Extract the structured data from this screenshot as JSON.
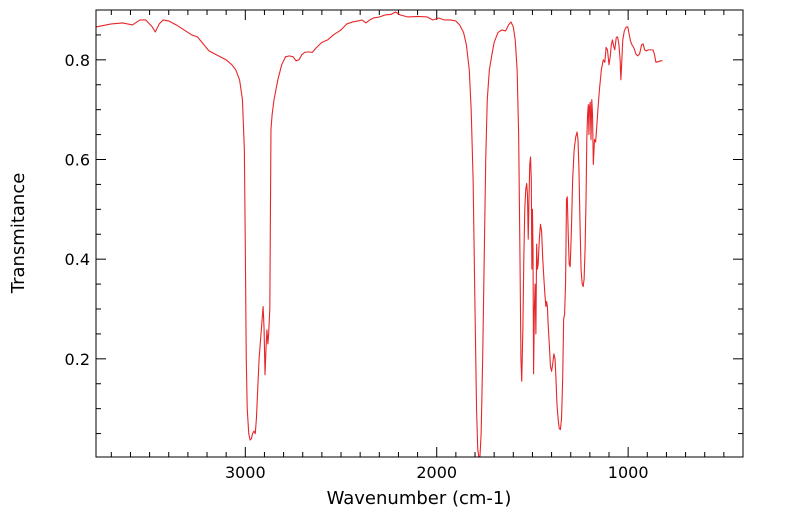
{
  "chart_data": {
    "type": "line",
    "xlabel": "Wavenumber (cm-1)",
    "ylabel": "Transmitance",
    "xlim": [
      3780,
      400
    ],
    "ylim": [
      0.003,
      0.9
    ],
    "x_reversed": true,
    "x_ticks": [
      3000,
      2000,
      1000
    ],
    "x_tick_labels": [
      "3000",
      "2000",
      "1000"
    ],
    "y_ticks": [
      0.2,
      0.4,
      0.6,
      0.8
    ],
    "y_tick_labels": [
      "0.2",
      "0.4",
      "0.6",
      "0.8"
    ],
    "grid": false,
    "series": [
      {
        "color": "#e8262a",
        "points": [
          [
            3780,
            0.866
          ],
          [
            3700,
            0.872
          ],
          [
            3640,
            0.874
          ],
          [
            3590,
            0.87
          ],
          [
            3550,
            0.88
          ],
          [
            3520,
            0.88
          ],
          [
            3490,
            0.868
          ],
          [
            3470,
            0.856
          ],
          [
            3450,
            0.872
          ],
          [
            3430,
            0.88
          ],
          [
            3400,
            0.878
          ],
          [
            3360,
            0.87
          ],
          [
            3320,
            0.86
          ],
          [
            3280,
            0.85
          ],
          [
            3250,
            0.846
          ],
          [
            3220,
            0.832
          ],
          [
            3190,
            0.818
          ],
          [
            3160,
            0.812
          ],
          [
            3130,
            0.806
          ],
          [
            3100,
            0.8
          ],
          [
            3070,
            0.79
          ],
          [
            3050,
            0.78
          ],
          [
            3030,
            0.76
          ],
          [
            3015,
            0.72
          ],
          [
            3005,
            0.62
          ],
          [
            3000,
            0.42
          ],
          [
            2995,
            0.2
          ],
          [
            2990,
            0.1
          ],
          [
            2982,
            0.05
          ],
          [
            2975,
            0.037
          ],
          [
            2968,
            0.04
          ],
          [
            2962,
            0.05
          ],
          [
            2955,
            0.055
          ],
          [
            2948,
            0.05
          ],
          [
            2942,
            0.08
          ],
          [
            2935,
            0.14
          ],
          [
            2928,
            0.2
          ],
          [
            2920,
            0.24
          ],
          [
            2912,
            0.28
          ],
          [
            2907,
            0.305
          ],
          [
            2902,
            0.26
          ],
          [
            2897,
            0.168
          ],
          [
            2892,
            0.22
          ],
          [
            2887,
            0.258
          ],
          [
            2882,
            0.23
          ],
          [
            2878,
            0.25
          ],
          [
            2872,
            0.3
          ],
          [
            2866,
            0.66
          ],
          [
            2860,
            0.69
          ],
          [
            2850,
            0.72
          ],
          [
            2830,
            0.76
          ],
          [
            2810,
            0.79
          ],
          [
            2790,
            0.806
          ],
          [
            2770,
            0.808
          ],
          [
            2750,
            0.806
          ],
          [
            2735,
            0.798
          ],
          [
            2720,
            0.8
          ],
          [
            2705,
            0.81
          ],
          [
            2690,
            0.815
          ],
          [
            2670,
            0.816
          ],
          [
            2650,
            0.815
          ],
          [
            2630,
            0.824
          ],
          [
            2600,
            0.835
          ],
          [
            2570,
            0.84
          ],
          [
            2540,
            0.85
          ],
          [
            2500,
            0.86
          ],
          [
            2470,
            0.872
          ],
          [
            2440,
            0.876
          ],
          [
            2410,
            0.878
          ],
          [
            2390,
            0.88
          ],
          [
            2370,
            0.874
          ],
          [
            2350,
            0.88
          ],
          [
            2330,
            0.884
          ],
          [
            2300,
            0.886
          ],
          [
            2270,
            0.89
          ],
          [
            2240,
            0.891
          ],
          [
            2215,
            0.896
          ],
          [
            2190,
            0.89
          ],
          [
            2150,
            0.886
          ],
          [
            2100,
            0.887
          ],
          [
            2050,
            0.886
          ],
          [
            2020,
            0.88
          ],
          [
            1990,
            0.884
          ],
          [
            1960,
            0.88
          ],
          [
            1930,
            0.88
          ],
          [
            1900,
            0.878
          ],
          [
            1880,
            0.87
          ],
          [
            1860,
            0.855
          ],
          [
            1845,
            0.83
          ],
          [
            1830,
            0.78
          ],
          [
            1820,
            0.7
          ],
          [
            1810,
            0.56
          ],
          [
            1800,
            0.3
          ],
          [
            1792,
            0.1
          ],
          [
            1786,
            0.02
          ],
          [
            1780,
            0.003
          ],
          [
            1774,
            0.005
          ],
          [
            1768,
            0.05
          ],
          [
            1760,
            0.2
          ],
          [
            1752,
            0.4
          ],
          [
            1744,
            0.6
          ],
          [
            1736,
            0.72
          ],
          [
            1725,
            0.78
          ],
          [
            1712,
            0.81
          ],
          [
            1700,
            0.835
          ],
          [
            1680,
            0.855
          ],
          [
            1660,
            0.86
          ],
          [
            1640,
            0.858
          ],
          [
            1625,
            0.87
          ],
          [
            1612,
            0.876
          ],
          [
            1600,
            0.866
          ],
          [
            1590,
            0.84
          ],
          [
            1580,
            0.78
          ],
          [
            1572,
            0.65
          ],
          [
            1565,
            0.4
          ],
          [
            1560,
            0.2
          ],
          [
            1556,
            0.155
          ],
          [
            1550,
            0.26
          ],
          [
            1545,
            0.4
          ],
          [
            1540,
            0.5
          ],
          [
            1535,
            0.54
          ],
          [
            1530,
            0.552
          ],
          [
            1526,
            0.53
          ],
          [
            1522,
            0.44
          ],
          [
            1518,
            0.52
          ],
          [
            1514,
            0.59
          ],
          [
            1510,
            0.605
          ],
          [
            1506,
            0.56
          ],
          [
            1503,
            0.38
          ],
          [
            1500,
            0.5
          ],
          [
            1497,
            0.42
          ],
          [
            1494,
            0.17
          ],
          [
            1490,
            0.3
          ],
          [
            1486,
            0.35
          ],
          [
            1482,
            0.25
          ],
          [
            1478,
            0.43
          ],
          [
            1474,
            0.38
          ],
          [
            1470,
            0.39
          ],
          [
            1464,
            0.44
          ],
          [
            1458,
            0.47
          ],
          [
            1452,
            0.455
          ],
          [
            1446,
            0.4
          ],
          [
            1440,
            0.36
          ],
          [
            1435,
            0.33
          ],
          [
            1430,
            0.305
          ],
          [
            1426,
            0.315
          ],
          [
            1422,
            0.305
          ],
          [
            1418,
            0.27
          ],
          [
            1412,
            0.23
          ],
          [
            1406,
            0.185
          ],
          [
            1400,
            0.175
          ],
          [
            1394,
            0.19
          ],
          [
            1388,
            0.21
          ],
          [
            1382,
            0.2
          ],
          [
            1377,
            0.16
          ],
          [
            1372,
            0.11
          ],
          [
            1366,
            0.08
          ],
          [
            1360,
            0.06
          ],
          [
            1354,
            0.058
          ],
          [
            1348,
            0.08
          ],
          [
            1342,
            0.16
          ],
          [
            1337,
            0.28
          ],
          [
            1332,
            0.29
          ],
          [
            1327,
            0.35
          ],
          [
            1322,
            0.52
          ],
          [
            1318,
            0.525
          ],
          [
            1313,
            0.45
          ],
          [
            1308,
            0.39
          ],
          [
            1303,
            0.385
          ],
          [
            1297,
            0.45
          ],
          [
            1290,
            0.56
          ],
          [
            1282,
            0.62
          ],
          [
            1274,
            0.645
          ],
          [
            1267,
            0.655
          ],
          [
            1262,
            0.64
          ],
          [
            1257,
            0.58
          ],
          [
            1252,
            0.48
          ],
          [
            1246,
            0.38
          ],
          [
            1240,
            0.35
          ],
          [
            1235,
            0.345
          ],
          [
            1230,
            0.36
          ],
          [
            1225,
            0.42
          ],
          [
            1220,
            0.52
          ],
          [
            1216,
            0.64
          ],
          [
            1212,
            0.69
          ],
          [
            1208,
            0.71
          ],
          [
            1205,
            0.65
          ],
          [
            1202,
            0.705
          ],
          [
            1198,
            0.715
          ],
          [
            1194,
            0.64
          ],
          [
            1190,
            0.72
          ],
          [
            1186,
            0.69
          ],
          [
            1182,
            0.59
          ],
          [
            1176,
            0.64
          ],
          [
            1170,
            0.635
          ],
          [
            1165,
            0.66
          ],
          [
            1158,
            0.7
          ],
          [
            1150,
            0.74
          ],
          [
            1140,
            0.78
          ],
          [
            1130,
            0.8
          ],
          [
            1122,
            0.795
          ],
          [
            1115,
            0.825
          ],
          [
            1108,
            0.82
          ],
          [
            1100,
            0.79
          ],
          [
            1094,
            0.805
          ],
          [
            1088,
            0.83
          ],
          [
            1082,
            0.84
          ],
          [
            1076,
            0.828
          ],
          [
            1070,
            0.82
          ],
          [
            1062,
            0.845
          ],
          [
            1055,
            0.846
          ],
          [
            1048,
            0.83
          ],
          [
            1042,
            0.8
          ],
          [
            1038,
            0.76
          ],
          [
            1034,
            0.79
          ],
          [
            1028,
            0.84
          ],
          [
            1020,
            0.858
          ],
          [
            1010,
            0.866
          ],
          [
            1002,
            0.866
          ],
          [
            995,
            0.852
          ],
          [
            988,
            0.838
          ],
          [
            980,
            0.83
          ],
          [
            970,
            0.824
          ],
          [
            960,
            0.812
          ],
          [
            950,
            0.808
          ],
          [
            940,
            0.812
          ],
          [
            930,
            0.83
          ],
          [
            922,
            0.832
          ],
          [
            914,
            0.82
          ],
          [
            905,
            0.818
          ],
          [
            895,
            0.82
          ],
          [
            880,
            0.82
          ],
          [
            870,
            0.82
          ],
          [
            862,
            0.81
          ],
          [
            855,
            0.795
          ],
          [
            845,
            0.796
          ],
          [
            830,
            0.798
          ],
          [
            820,
            0.798
          ]
        ]
      }
    ]
  }
}
